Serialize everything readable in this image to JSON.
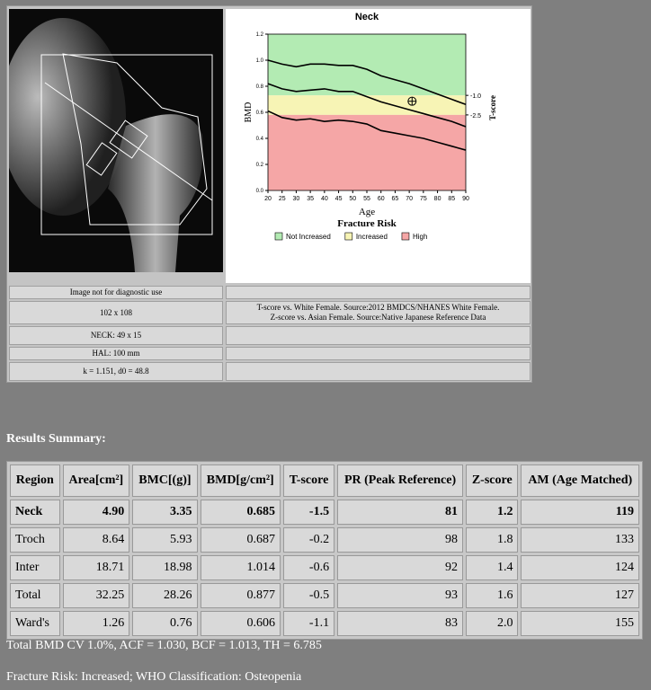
{
  "chart": {
    "title": "Neck",
    "ylabel": "BMD",
    "xlabel": "Age",
    "y2label": "T-score",
    "legend_title": "Fracture Risk",
    "xlim": [
      20,
      90
    ],
    "xticks": [
      20,
      25,
      30,
      35,
      40,
      45,
      50,
      55,
      60,
      65,
      70,
      75,
      80,
      85,
      90
    ],
    "ylim": [
      0,
      1.2
    ],
    "yticks": [
      {
        "value": 0,
        "label": "0.0"
      },
      0.2,
      0.4,
      0.6,
      0.8,
      {
        "value": 1.0,
        "label": "1.0"
      },
      1.2
    ],
    "y2lim": [
      -8.3,
      3.7
    ],
    "y2ticks": [
      {
        "value": -1,
        "label": "-1.0"
      },
      -2.5
    ],
    "bands": [
      {
        "name": "Not Increased",
        "color": "#b3ebb3",
        "range": [
          0.73,
          1.2
        ]
      },
      {
        "name": "Increased",
        "color": "#f7f4b5",
        "range": [
          0.58,
          0.73
        ]
      },
      {
        "name": "High",
        "color": "#f5a6a6",
        "range": [
          0,
          0.58
        ]
      }
    ],
    "curve_x": [
      20,
      25,
      30,
      35,
      40,
      45,
      50,
      55,
      60,
      65,
      70,
      75,
      80,
      85,
      90
    ],
    "curves": [
      [
        1.0,
        0.97,
        0.95,
        0.97,
        0.97,
        0.96,
        0.96,
        0.93,
        0.88,
        0.85,
        0.82,
        0.78,
        0.74,
        0.7,
        0.66
      ],
      [
        0.82,
        0.78,
        0.76,
        0.77,
        0.78,
        0.76,
        0.76,
        0.72,
        0.68,
        0.65,
        0.62,
        0.59,
        0.56,
        0.53,
        0.49
      ],
      [
        0.61,
        0.56,
        0.54,
        0.55,
        0.53,
        0.54,
        0.53,
        0.51,
        0.46,
        0.44,
        0.42,
        0.4,
        0.37,
        0.34,
        0.31
      ]
    ],
    "patient": {
      "x": 71,
      "y": 0.685
    }
  },
  "info": {
    "left": [
      "Image not for diagnostic use",
      "102 x 108",
      "NECK: 49 x 15",
      "HAL: 100 mm",
      "k = 1.151, d0 = 48.8"
    ],
    "right": [
      "T-score vs. White Female. Source:2012 BMDCS/NHANES White Female.",
      "Z-score vs. Asian Female. Source:Native Japanese Reference Data"
    ]
  },
  "results": {
    "title": "Results Summary:",
    "header": [
      "Region",
      "Area[cm²]",
      "BMC[(g)]",
      "BMD[g/cm²]",
      "T-score",
      "PR (Peak Reference)",
      "Z-score",
      "AM (Age Matched)"
    ],
    "rows": [
      [
        "Neck",
        "4.90",
        "3.35",
        "0.685",
        "-1.5",
        "81",
        "1.2",
        "119"
      ],
      [
        "Troch",
        "8.64",
        "5.93",
        "0.687",
        "-0.2",
        "98",
        "1.8",
        "133"
      ],
      [
        "Inter",
        "18.71",
        "18.98",
        "1.014",
        "-0.6",
        "92",
        "1.4",
        "124"
      ],
      [
        "Total",
        "32.25",
        "28.26",
        "0.877",
        "-0.5",
        "93",
        "1.6",
        "127"
      ],
      [
        "Ward's",
        "1.26",
        "0.76",
        "0.606",
        "-1.1",
        "83",
        "2.0",
        "155"
      ]
    ]
  },
  "footer": [
    "Total BMD CV 1.0%, ACF = 1.030, BCF = 1.013, TH = 6.785",
    "Fracture Risk: Increased; WHO Classification: Osteopenia"
  ]
}
